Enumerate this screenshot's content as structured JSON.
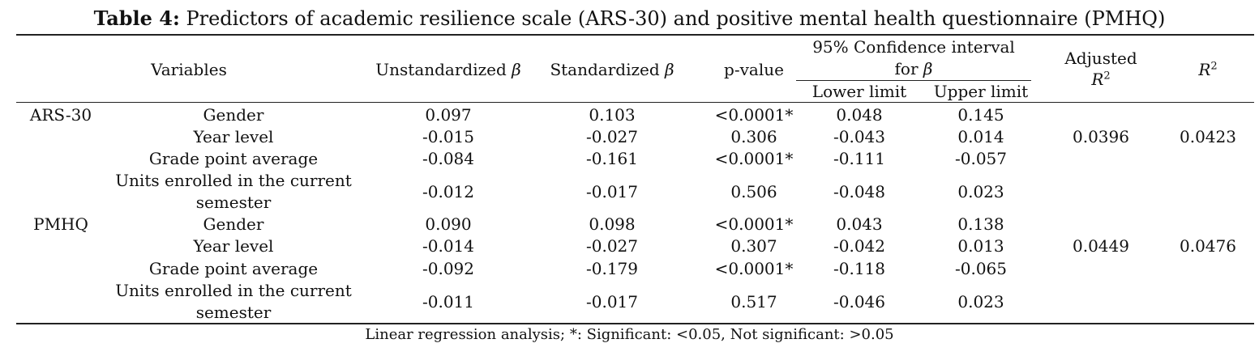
{
  "caption": {
    "label": "Table 4:",
    "title": "Predictors of academic resilience scale (ARS-30) and positive mental health questionnaire (PMHQ)"
  },
  "headers": {
    "variables": "Variables",
    "unstd": "Unstandardized β",
    "std": "Standardized β",
    "pvalue": "p-value",
    "ci_line1": "95% Confidence interval",
    "ci_line2": "for β",
    "lower": "Lower limit",
    "upper": "Upper limit",
    "adj_line1": "Adjusted",
    "adj_line2": "R",
    "r2": "R",
    "sup": "2"
  },
  "groups": [
    {
      "name": "ARS-30",
      "adjusted_r2": "0.0396",
      "r2": "0.0423",
      "rows": [
        {
          "variable": "Gender",
          "variable2": "",
          "unstd": "0.097",
          "std": "0.103",
          "p": "<0.0001*",
          "lower": "0.048",
          "upper": "0.145"
        },
        {
          "variable": "Year level",
          "variable2": "",
          "unstd": "-0.015",
          "std": "-0.027",
          "p": "0.306",
          "lower": "-0.043",
          "upper": "0.014"
        },
        {
          "variable": "Grade point average",
          "variable2": "",
          "unstd": "-0.084",
          "std": "-0.161",
          "p": "<0.0001*",
          "lower": "-0.111",
          "upper": "-0.057"
        },
        {
          "variable": "Units enrolled in the current",
          "variable2": "semester",
          "unstd": "-0.012",
          "std": "-0.017",
          "p": "0.506",
          "lower": "-0.048",
          "upper": "0.023"
        }
      ]
    },
    {
      "name": "PMHQ",
      "adjusted_r2": "0.0449",
      "r2": "0.0476",
      "rows": [
        {
          "variable": "Gender",
          "variable2": "",
          "unstd": "0.090",
          "std": "0.098",
          "p": "<0.0001*",
          "lower": "0.043",
          "upper": "0.138"
        },
        {
          "variable": "Year level",
          "variable2": "",
          "unstd": "-0.014",
          "std": "-0.027",
          "p": "0.307",
          "lower": "-0.042",
          "upper": "0.013"
        },
        {
          "variable": "Grade point average",
          "variable2": "",
          "unstd": "-0.092",
          "std": "-0.179",
          "p": "<0.0001*",
          "lower": "-0.118",
          "upper": "-0.065"
        },
        {
          "variable": "Units enrolled in the current",
          "variable2": "semester",
          "unstd": "-0.011",
          "std": "-0.017",
          "p": "0.517",
          "lower": "-0.046",
          "upper": "0.023"
        }
      ]
    }
  ],
  "footnote": "Linear regression analysis; *: Significant: <0.05, Not significant: >0.05"
}
